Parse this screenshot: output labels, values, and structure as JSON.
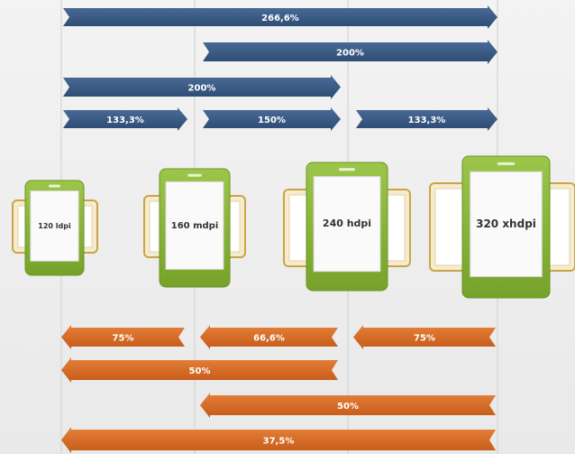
{
  "up_arrows": [
    {
      "label": "266,6%"
    },
    {
      "label": "200%"
    },
    {
      "label": "200%"
    },
    {
      "label": "133,3%"
    },
    {
      "label": "150%"
    },
    {
      "label": "133,3%"
    }
  ],
  "devices": [
    {
      "label": "120 ldpi"
    },
    {
      "label": "160 mdpi"
    },
    {
      "label": "240 hdpi"
    },
    {
      "label": "320 xhdpi"
    }
  ],
  "down_arrows": [
    {
      "label": "75%"
    },
    {
      "label": "66,6%"
    },
    {
      "label": "75%"
    },
    {
      "label": "50%"
    },
    {
      "label": "50%"
    },
    {
      "label": "37,5%"
    }
  ]
}
